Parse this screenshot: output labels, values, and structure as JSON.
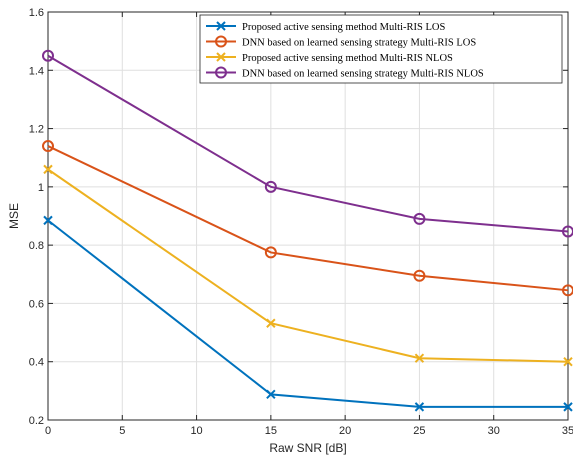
{
  "chart_data": {
    "type": "line",
    "title": "",
    "xlabel": "Raw SNR [dB]",
    "ylabel": "MSE",
    "xlim": [
      0,
      35
    ],
    "ylim": [
      0.2,
      1.6
    ],
    "xticks": [
      0,
      5,
      10,
      15,
      20,
      25,
      30,
      35
    ],
    "yticks": [
      0.2,
      0.4,
      0.6,
      0.8,
      1,
      1.2,
      1.4,
      1.6
    ],
    "grid": true,
    "legend_position": "top-right",
    "x": [
      0,
      15,
      25,
      35
    ],
    "series": [
      {
        "name": "Proposed active sensing method Multi-RIS LOS",
        "values": [
          0.885,
          0.288,
          0.245,
          0.245
        ],
        "color": "#0072BD",
        "marker": "x"
      },
      {
        "name": "DNN based on learned sensing strategy Multi-RIS LOS",
        "values": [
          1.14,
          0.775,
          0.695,
          0.645
        ],
        "color": "#D95319",
        "marker": "o"
      },
      {
        "name": "Proposed active sensing method Multi-RIS NLOS",
        "values": [
          1.06,
          0.532,
          0.412,
          0.4
        ],
        "color": "#EDB120",
        "marker": "x"
      },
      {
        "name": "DNN based on learned sensing strategy Multi-RIS NLOS",
        "values": [
          1.45,
          1.0,
          0.89,
          0.847
        ],
        "color": "#7E2F8E",
        "marker": "o"
      }
    ]
  }
}
